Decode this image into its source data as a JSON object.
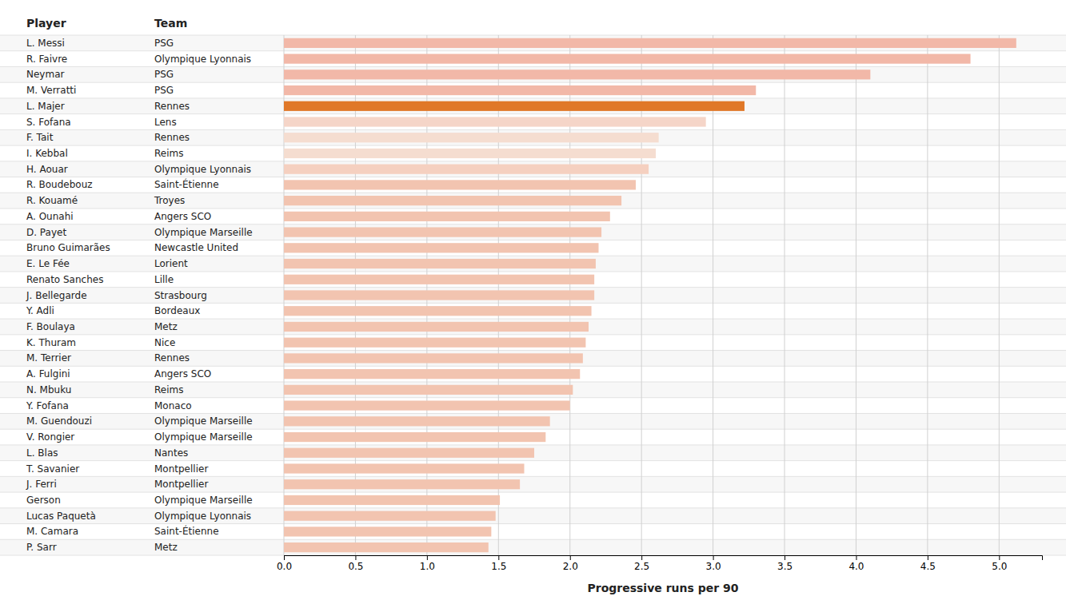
{
  "chart_data": {
    "type": "bar",
    "orientation": "horizontal",
    "headers": [
      "Player",
      "Team"
    ],
    "categories": [
      "L. Messi",
      "R. Faivre",
      "Neymar",
      "M. Verratti",
      "L. Majer",
      "S. Fofana",
      "F. Tait",
      "I. Kebbal",
      "H. Aouar",
      "R. Boudebouz",
      "R. Kouamé",
      "A. Ounahi",
      "D. Payet",
      "Bruno Guimarães",
      "E. Le Fée",
      "Renato Sanches",
      "J. Bellegarde",
      "Y. Adli",
      "F. Boulaya",
      "K. Thuram",
      "M. Terrier",
      "A. Fulgini",
      "N. Mbuku",
      "Y. Fofana",
      "M. Guendouzi",
      "V. Rongier",
      "L. Blas",
      "T. Savanier",
      "J. Ferri",
      "Gerson",
      "Lucas Paquetà",
      "M. Camara",
      "P. Sarr"
    ],
    "teams": [
      "PSG",
      "Olympique Lyonnais",
      "PSG",
      "PSG",
      "Rennes",
      "Lens",
      "Rennes",
      "Reims",
      "Olympique Lyonnais",
      "Saint-Étienne",
      "Troyes",
      "Angers SCO",
      "Olympique Marseille",
      "Newcastle United",
      "Lorient",
      "Lille",
      "Strasbourg",
      "Bordeaux",
      "Metz",
      "Nice",
      "Rennes",
      "Angers SCO",
      "Reims",
      "Monaco",
      "Olympique Marseille",
      "Olympique Marseille",
      "Nantes",
      "Montpellier",
      "Montpellier",
      "Olympique Marseille",
      "Olympique Lyonnais",
      "Saint-Étienne",
      "Metz"
    ],
    "values": [
      5.12,
      4.8,
      4.1,
      3.3,
      3.22,
      2.95,
      2.62,
      2.6,
      2.55,
      2.46,
      2.36,
      2.28,
      2.22,
      2.2,
      2.18,
      2.17,
      2.17,
      2.15,
      2.13,
      2.11,
      2.09,
      2.07,
      2.02,
      2.0,
      1.86,
      1.83,
      1.75,
      1.68,
      1.65,
      1.51,
      1.48,
      1.45,
      1.43
    ],
    "colors": [
      "#f2b8a8",
      "#f2b8a8",
      "#f2b8a8",
      "#f2b8a8",
      "#e07828",
      "#f5d5c8",
      "#f5ddd0",
      "#f5ddd0",
      "#f5d0c0",
      "#f2c4b0",
      "#f2c4b0",
      "#f2c4b0",
      "#f2c4b0",
      "#f2c4b0",
      "#f2c4b0",
      "#f2c4b0",
      "#f2c4b0",
      "#f2c4b0",
      "#f2c4b0",
      "#f2c4b0",
      "#f2c4b0",
      "#f2c4b0",
      "#f2c4b0",
      "#f2c4b0",
      "#f2c4b0",
      "#f2c4b0",
      "#f2c4b0",
      "#f2c4b0",
      "#f2c4b0",
      "#f2c4b0",
      "#f2c4b0",
      "#f2c4b0",
      "#f2c4b0"
    ],
    "x_label": "Progressive runs per 90",
    "xlim": [
      0.0,
      5.3
    ],
    "xticks": [
      {
        "value": 0,
        "label": "0.0"
      },
      0.5,
      {
        "value": 1,
        "label": "1.0"
      },
      1.5,
      {
        "value": 2,
        "label": "2.0"
      },
      2.5,
      {
        "value": 3,
        "label": "3.0"
      },
      3.5,
      {
        "value": 4,
        "label": "4.0"
      },
      4.5,
      {
        "value": 5,
        "label": "5.0"
      }
    ],
    "grid": true
  }
}
